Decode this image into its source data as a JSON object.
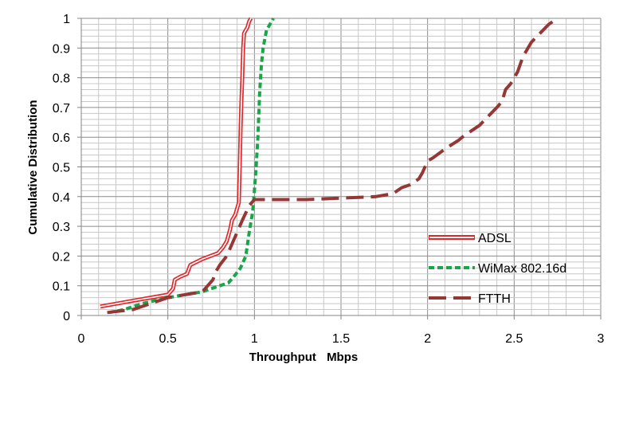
{
  "chart_data": {
    "type": "line",
    "title": "",
    "xlabel": "Throughput",
    "xlabel_unit": "Mbps",
    "ylabel": "Cumulative Distribution",
    "xlim": [
      0,
      3
    ],
    "ylim": [
      0,
      1
    ],
    "x_ticks": [
      "0",
      "0.5",
      "1",
      "1.5",
      "2",
      "2.5",
      "3"
    ],
    "y_ticks": [
      "0",
      "0.1",
      "0.2",
      "0.3",
      "0.4",
      "0.5",
      "0.6",
      "0.7",
      "0.8",
      "0.9",
      "1"
    ],
    "grid": true,
    "legend_position": "right",
    "series": [
      {
        "name": "ADSL",
        "color": "#e3282c",
        "style": "double-line",
        "x": [
          0.11,
          0.3,
          0.5,
          0.53,
          0.54,
          0.57,
          0.61,
          0.63,
          0.7,
          0.79,
          0.82,
          0.84,
          0.86,
          0.87,
          0.89,
          0.9,
          0.91,
          0.915,
          0.92,
          0.925,
          0.93,
          0.935,
          0.94,
          0.96,
          0.97,
          0.98
        ],
        "y": [
          0.03,
          0.05,
          0.07,
          0.09,
          0.12,
          0.13,
          0.14,
          0.17,
          0.19,
          0.21,
          0.23,
          0.25,
          0.29,
          0.32,
          0.34,
          0.36,
          0.38,
          0.5,
          0.62,
          0.72,
          0.8,
          0.9,
          0.95,
          0.97,
          0.99,
          1.0
        ]
      },
      {
        "name": "WiMax 802.16d",
        "color": "#1aa54a",
        "style": "dashed",
        "x": [
          0.16,
          0.25,
          0.35,
          0.5,
          0.6,
          0.7,
          0.8,
          0.85,
          0.88,
          0.92,
          0.95,
          0.97,
          0.99,
          1.0,
          1.01,
          1.02,
          1.03,
          1.04,
          1.05,
          1.07,
          1.11
        ],
        "y": [
          0.01,
          0.02,
          0.04,
          0.06,
          0.07,
          0.08,
          0.1,
          0.11,
          0.13,
          0.16,
          0.2,
          0.28,
          0.35,
          0.42,
          0.5,
          0.6,
          0.75,
          0.84,
          0.9,
          0.96,
          1.0
        ]
      },
      {
        "name": "FTTH",
        "color": "#943735",
        "style": "long-dash",
        "x": [
          0.15,
          0.3,
          0.4,
          0.5,
          0.6,
          0.7,
          0.76,
          0.78,
          0.8,
          0.84,
          0.87,
          0.9,
          0.93,
          0.97,
          1.0,
          1.1,
          1.3,
          1.5,
          1.7,
          1.8,
          1.85,
          1.9,
          1.95,
          1.97,
          2.0,
          2.03,
          2.1,
          2.18,
          2.22,
          2.25,
          2.3,
          2.35,
          2.4,
          2.43,
          2.45,
          2.48,
          2.52,
          2.55,
          2.58,
          2.6,
          2.65,
          2.7,
          2.75
        ],
        "y": [
          0.01,
          0.02,
          0.04,
          0.06,
          0.07,
          0.08,
          0.12,
          0.15,
          0.17,
          0.2,
          0.24,
          0.28,
          0.32,
          0.37,
          0.39,
          0.39,
          0.39,
          0.395,
          0.4,
          0.41,
          0.43,
          0.44,
          0.46,
          0.48,
          0.52,
          0.53,
          0.56,
          0.59,
          0.61,
          0.62,
          0.64,
          0.67,
          0.7,
          0.72,
          0.76,
          0.78,
          0.82,
          0.87,
          0.9,
          0.92,
          0.95,
          0.98,
          1.0
        ]
      }
    ]
  }
}
